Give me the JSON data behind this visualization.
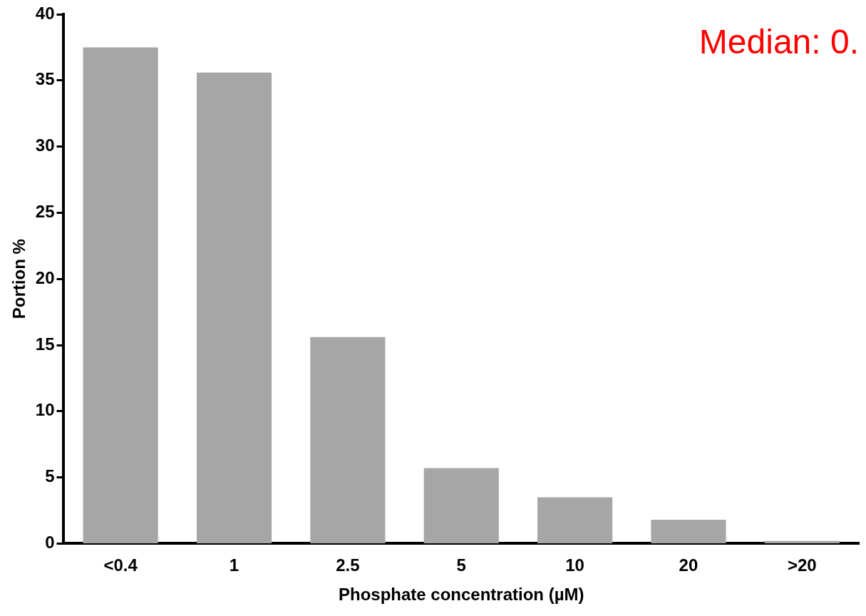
{
  "chart_data": {
    "type": "bar",
    "xlabel": "Phosphate concentration (µM)",
    "ylabel": "Portion %",
    "categories": [
      "<0.4",
      "1",
      "2.5",
      "5",
      "10",
      "20",
      ">20"
    ],
    "values": [
      37.5,
      35.6,
      15.6,
      5.7,
      3.5,
      1.8,
      0.2
    ],
    "color": "#a6a6a6",
    "ylim": [
      0,
      40
    ],
    "yticks": [
      0,
      5,
      10,
      15,
      20,
      25,
      30,
      35,
      40
    ],
    "grid": false,
    "legend": false,
    "annotations": [
      "Median: 0."
    ]
  }
}
